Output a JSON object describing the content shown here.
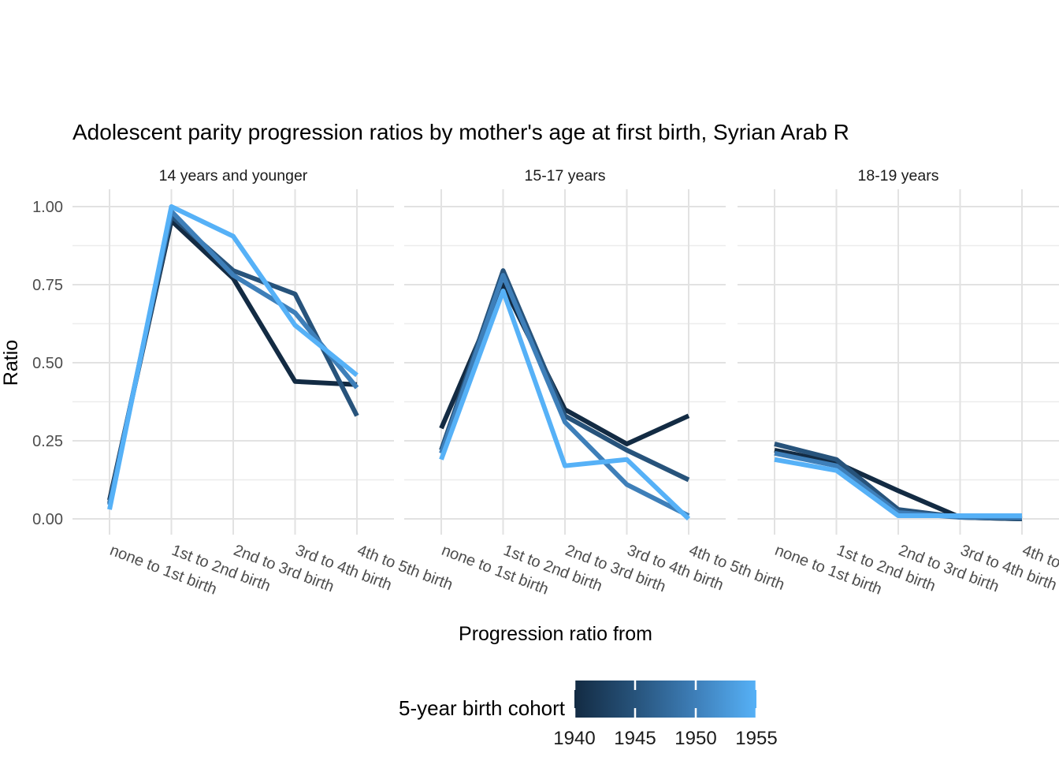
{
  "title": "Adolescent parity progression ratios by mother's age at first birth,  Syrian Arab R",
  "y_axis": {
    "label": "Ratio",
    "ticks": [
      "0.00",
      "0.25",
      "0.50",
      "0.75",
      "1.00"
    ]
  },
  "x_axis": {
    "label": "Progression ratio from"
  },
  "legend": {
    "title": "5-year birth cohort",
    "labels": [
      "1940",
      "1945",
      "1950",
      "1955"
    ],
    "gradient_stops": [
      "#132B43",
      "#27537B",
      "#3E7FB9",
      "#56B1F7"
    ]
  },
  "chart_data": {
    "type": "line",
    "title": "Adolescent parity progression ratios by mother's age at first birth,  Syrian Arab R",
    "xlabel": "Progression ratio from",
    "ylabel": "Ratio",
    "ylim": [
      0,
      1
    ],
    "y_ticks": [
      0,
      0.25,
      0.5,
      0.75,
      1.0
    ],
    "x_categories": [
      "none to 1st birth",
      "1st to 2nd birth",
      "2nd to 3rd birth",
      "3rd to 4th birth",
      "4th to 5th birth"
    ],
    "legend_title": "5-year birth cohort",
    "legend_type": "colorbar",
    "facets": [
      {
        "label": "14 years and younger",
        "series": [
          {
            "name": "1940",
            "color": "#132B43",
            "values": [
              0.06,
              0.955,
              0.77,
              0.44,
              0.43
            ]
          },
          {
            "name": "1945",
            "color": "#27537B",
            "values": [
              0.05,
              0.97,
              0.795,
              0.72,
              0.33
            ]
          },
          {
            "name": "1950",
            "color": "#3E7FB9",
            "values": [
              0.045,
              0.985,
              0.78,
              0.66,
              0.42
            ]
          },
          {
            "name": "1955",
            "color": "#56B1F7",
            "values": [
              0.03,
              1.0,
              0.905,
              0.62,
              0.46
            ]
          }
        ]
      },
      {
        "label": "15-17 years",
        "series": [
          {
            "name": "1940",
            "color": "#132B43",
            "values": [
              0.29,
              0.75,
              0.35,
              0.24,
              0.33
            ]
          },
          {
            "name": "1945",
            "color": "#27537B",
            "values": [
              0.22,
              0.795,
              0.33,
              0.22,
              0.125
            ]
          },
          {
            "name": "1950",
            "color": "#3E7FB9",
            "values": [
              0.21,
              0.78,
              0.31,
              0.11,
              0.01
            ]
          },
          {
            "name": "1955",
            "color": "#56B1F7",
            "values": [
              0.19,
              0.73,
              0.17,
              0.19,
              0.0
            ]
          }
        ]
      },
      {
        "label": "18-19 years",
        "series": [
          {
            "name": "1940",
            "color": "#132B43",
            "values": [
              0.22,
              0.18,
              0.09,
              0.005,
              0.0
            ]
          },
          {
            "name": "1945",
            "color": "#27537B",
            "values": [
              0.24,
              0.19,
              0.03,
              0.005,
              0.0
            ]
          },
          {
            "name": "1950",
            "color": "#3E7FB9",
            "values": [
              0.21,
              0.17,
              0.02,
              0.005,
              0.005
            ]
          },
          {
            "name": "1955",
            "color": "#56B1F7",
            "values": [
              0.19,
              0.155,
              0.01,
              0.01,
              0.01
            ]
          }
        ]
      }
    ]
  }
}
